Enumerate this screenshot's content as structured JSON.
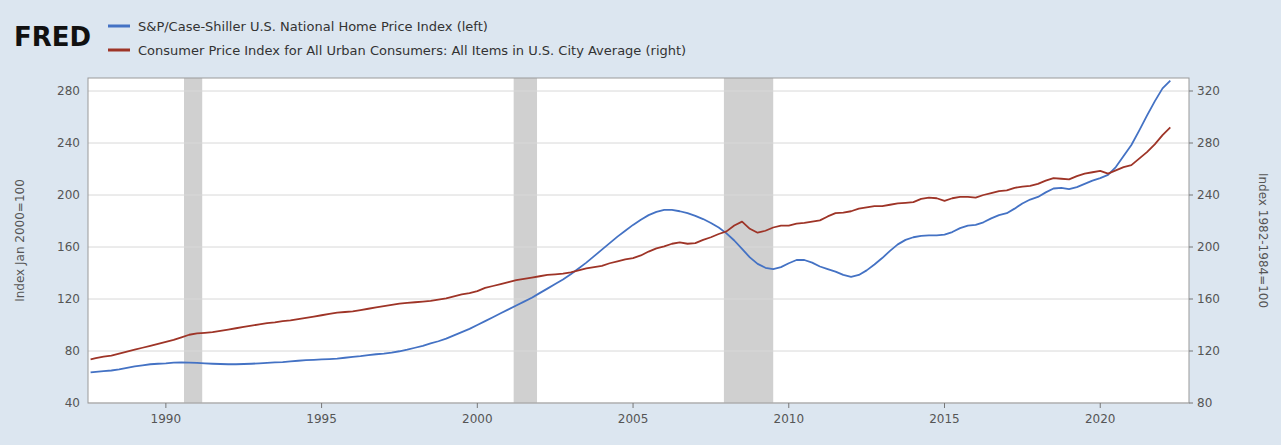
{
  "chart_data": {
    "type": "line",
    "title": "FRED",
    "ylabel": "Index Jan 2000=100",
    "y2label": "Index 1982-1984=100",
    "xlim": [
      1987.5,
      2022.85
    ],
    "xticks": [
      1990,
      1995,
      2000,
      2005,
      2010,
      2015,
      2020
    ],
    "ylim": [
      40,
      290
    ],
    "yticks": [
      40,
      80,
      120,
      160,
      200,
      240,
      280
    ],
    "y2lim": [
      80,
      330
    ],
    "y2ticks": [
      80,
      120,
      160,
      200,
      240,
      280,
      320
    ],
    "grid": true,
    "recession_bands": [
      [
        1990.583,
        1991.167
      ],
      [
        2001.167,
        2001.917
      ],
      [
        2007.917,
        2009.5
      ]
    ],
    "x": [
      1987.583,
      1987.75,
      1988.0,
      1988.25,
      1988.5,
      1988.75,
      1989.0,
      1989.25,
      1989.5,
      1989.75,
      1990.0,
      1990.25,
      1990.5,
      1990.75,
      1991.0,
      1991.25,
      1991.5,
      1991.75,
      1992.0,
      1992.25,
      1992.5,
      1992.75,
      1993.0,
      1993.25,
      1993.5,
      1993.75,
      1994.0,
      1994.25,
      1994.5,
      1994.75,
      1995.0,
      1995.25,
      1995.5,
      1995.75,
      1996.0,
      1996.25,
      1996.5,
      1996.75,
      1997.0,
      1997.25,
      1997.5,
      1997.75,
      1998.0,
      1998.25,
      1998.5,
      1998.75,
      1999.0,
      1999.25,
      1999.5,
      1999.75,
      2000.0,
      2000.25,
      2000.5,
      2000.75,
      2001.0,
      2001.25,
      2001.5,
      2001.75,
      2002.0,
      2002.25,
      2002.5,
      2002.75,
      2003.0,
      2003.25,
      2003.5,
      2003.75,
      2004.0,
      2004.25,
      2004.5,
      2004.75,
      2005.0,
      2005.25,
      2005.5,
      2005.75,
      2006.0,
      2006.25,
      2006.5,
      2006.75,
      2007.0,
      2007.25,
      2007.5,
      2007.75,
      2008.0,
      2008.25,
      2008.5,
      2008.75,
      2009.0,
      2009.25,
      2009.5,
      2009.75,
      2010.0,
      2010.25,
      2010.5,
      2010.75,
      2011.0,
      2011.25,
      2011.5,
      2011.75,
      2012.0,
      2012.25,
      2012.5,
      2012.75,
      2013.0,
      2013.25,
      2013.5,
      2013.75,
      2014.0,
      2014.25,
      2014.5,
      2014.75,
      2015.0,
      2015.25,
      2015.5,
      2015.75,
      2016.0,
      2016.25,
      2016.5,
      2016.75,
      2017.0,
      2017.25,
      2017.5,
      2017.75,
      2018.0,
      2018.25,
      2018.5,
      2018.75,
      2019.0,
      2019.25,
      2019.5,
      2019.75,
      2020.0,
      2020.25,
      2020.5,
      2020.75,
      2021.0,
      2021.25,
      2021.5,
      2021.75,
      2022.0,
      2022.25
    ],
    "series": [
      {
        "name": "S&P/Case-Shiller U.S. National Home Price Index (left)",
        "color": "#4472c4",
        "values": [
          63.5,
          64.0,
          64.5,
          65.0,
          65.8,
          67.0,
          68.2,
          69.0,
          69.8,
          70.2,
          70.5,
          71.0,
          71.2,
          71.0,
          70.8,
          70.5,
          70.2,
          70.0,
          69.8,
          69.8,
          70.0,
          70.2,
          70.5,
          70.8,
          71.2,
          71.5,
          72.0,
          72.5,
          73.0,
          73.2,
          73.5,
          73.8,
          74.2,
          74.8,
          75.5,
          76.0,
          76.8,
          77.5,
          78.0,
          78.8,
          79.8,
          81.0,
          82.5,
          84.0,
          85.8,
          87.5,
          89.5,
          92.0,
          94.5,
          97.0,
          100.0,
          103.0,
          106.0,
          109.0,
          112.0,
          115.0,
          118.0,
          121.0,
          124.5,
          128.0,
          131.5,
          135.0,
          139.0,
          143.5,
          148.0,
          153.0,
          158.0,
          163.0,
          168.0,
          172.5,
          177.0,
          181.0,
          184.5,
          187.0,
          188.5,
          188.5,
          187.5,
          186.0,
          184.0,
          181.5,
          178.5,
          175.0,
          170.5,
          165.0,
          158.5,
          152.0,
          147.0,
          144.0,
          143.0,
          144.5,
          147.5,
          150.0,
          150.0,
          148.0,
          145.0,
          143.0,
          141.0,
          138.5,
          137.0,
          138.5,
          142.0,
          146.5,
          151.5,
          157.0,
          162.0,
          165.5,
          167.5,
          168.5,
          169.0,
          169.0,
          169.5,
          171.5,
          174.5,
          176.5,
          177.0,
          179.0,
          182.0,
          184.5,
          186.0,
          189.5,
          193.5,
          196.5,
          198.5,
          202.0,
          205.0,
          205.5,
          204.5,
          206.0,
          208.5,
          211.0,
          213.0,
          215.5,
          221.5,
          230.0,
          238.5,
          249.5,
          261.0,
          272.0,
          282.0,
          288.0
        ]
      },
      {
        "name": "Consumer Price Index for All Urban Consumers: All Items in U.S. City Average (right)",
        "color": "#9e3427",
        "axis": "y2",
        "values": [
          113.5,
          114.5,
          115.7,
          116.5,
          118.0,
          119.5,
          121.0,
          122.5,
          124.0,
          125.5,
          127.0,
          128.5,
          130.5,
          132.5,
          133.5,
          134.0,
          134.5,
          135.5,
          136.5,
          137.5,
          138.5,
          139.5,
          140.5,
          141.5,
          142.0,
          143.0,
          143.5,
          144.5,
          145.5,
          146.5,
          147.5,
          148.5,
          149.5,
          150.0,
          150.5,
          151.5,
          152.5,
          153.5,
          154.5,
          155.5,
          156.5,
          157.0,
          157.5,
          158.0,
          158.5,
          159.5,
          160.5,
          162.0,
          163.5,
          164.5,
          166.0,
          168.5,
          170.0,
          171.5,
          173.0,
          174.5,
          175.5,
          176.5,
          177.5,
          178.5,
          179.0,
          179.5,
          180.5,
          182.0,
          183.5,
          184.5,
          185.5,
          187.5,
          189.0,
          190.5,
          191.5,
          193.5,
          196.5,
          199.0,
          200.5,
          202.5,
          203.5,
          202.5,
          203.0,
          205.5,
          207.5,
          210.0,
          212.0,
          216.5,
          219.5,
          214.0,
          211.0,
          212.5,
          215.0,
          216.5,
          216.5,
          218.0,
          218.5,
          219.5,
          220.5,
          223.5,
          226.0,
          226.5,
          227.5,
          229.5,
          230.5,
          231.5,
          231.5,
          232.5,
          233.5,
          234.0,
          234.5,
          237.0,
          238.0,
          237.5,
          235.5,
          237.5,
          238.5,
          238.5,
          238.0,
          240.0,
          241.5,
          243.0,
          243.5,
          245.5,
          246.5,
          247.0,
          248.5,
          251.0,
          253.0,
          252.5,
          252.0,
          254.5,
          256.5,
          257.5,
          258.5,
          256.5,
          259.0,
          261.5,
          263.0,
          268.0,
          273.0,
          279.0,
          286.0,
          292.0
        ]
      }
    ]
  }
}
